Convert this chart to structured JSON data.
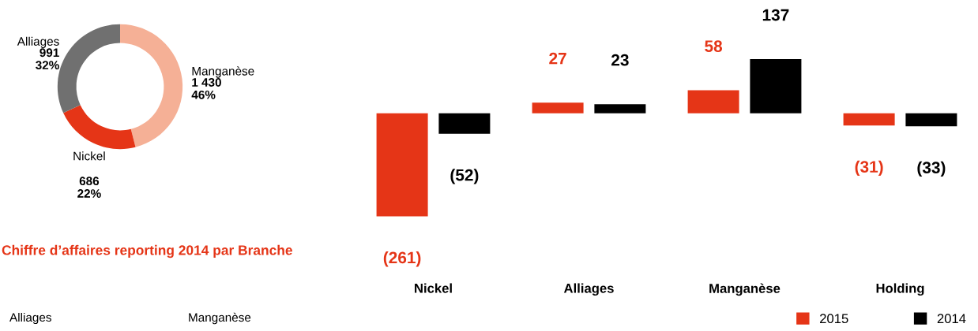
{
  "chart_data": [
    {
      "type": "donut",
      "categories": [
        "Manganèse",
        "Nickel",
        "Alliages"
      ],
      "values": [
        1430,
        686,
        991
      ],
      "colors": [
        "#f5b096",
        "#e53517",
        "#707070"
      ],
      "value_labels": [
        "1 430",
        "686",
        "991"
      ],
      "annotations": [
        "46%",
        "22%",
        "32%"
      ]
    },
    {
      "type": "bar",
      "categories": [
        "Nickel",
        "Alliages",
        "Manganèse",
        "Holding"
      ],
      "legend": "bottom right",
      "series": [
        {
          "name": "2015",
          "color": "#e53517",
          "values": [
            -261,
            27,
            58,
            -31
          ],
          "value_labels": [
            "(261)",
            "27",
            "58",
            "(31)"
          ]
        },
        {
          "name": "2014",
          "color": "#000000",
          "values": [
            -52,
            23,
            137,
            -33
          ],
          "value_labels": [
            "(52)",
            "23",
            "137",
            "(33)"
          ]
        }
      ]
    },
    {
      "type": "other",
      "title": "Chiffre d’affaires reporting 2014 par Branche",
      "annotations": [
        "Alliages",
        "Manganèse"
      ]
    }
  ]
}
